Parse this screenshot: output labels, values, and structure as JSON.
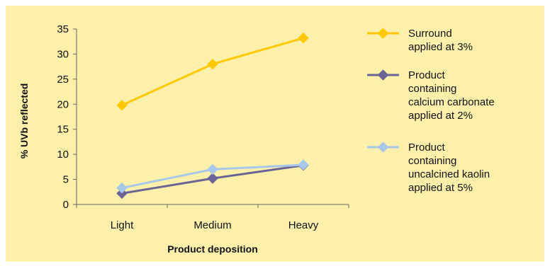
{
  "chart_data": {
    "type": "line",
    "categories": [
      "Light",
      "Medium",
      "Heavy"
    ],
    "xlabel": "Product deposition",
    "ylabel": "% UVb reflected",
    "ylim": [
      0,
      35
    ],
    "yticks": [
      0,
      5,
      10,
      15,
      20,
      25,
      30,
      35
    ],
    "grid": false,
    "legend_position": "right",
    "series": [
      {
        "name": "Surround applied at 3%",
        "legend_lines": [
          "Surround",
          "applied at 3%"
        ],
        "color": "#FFC800",
        "marker": "diamond",
        "values": [
          19.8,
          28.0,
          33.2
        ]
      },
      {
        "name": "Product containing calcium carbonate applied at 2%",
        "legend_lines": [
          "Product",
          "containing",
          "calcium carbonate",
          "applied at 2%"
        ],
        "color": "#6B6496",
        "marker": "diamond",
        "values": [
          2.2,
          5.2,
          7.8
        ]
      },
      {
        "name": "Product containing uncalcined kaolin applied at 5%",
        "legend_lines": [
          "Product",
          "containing",
          "uncalcined kaolin",
          "applied at 5%"
        ],
        "color": "#A7C8E8",
        "marker": "diamond",
        "values": [
          3.3,
          7.0,
          7.9
        ]
      }
    ]
  }
}
